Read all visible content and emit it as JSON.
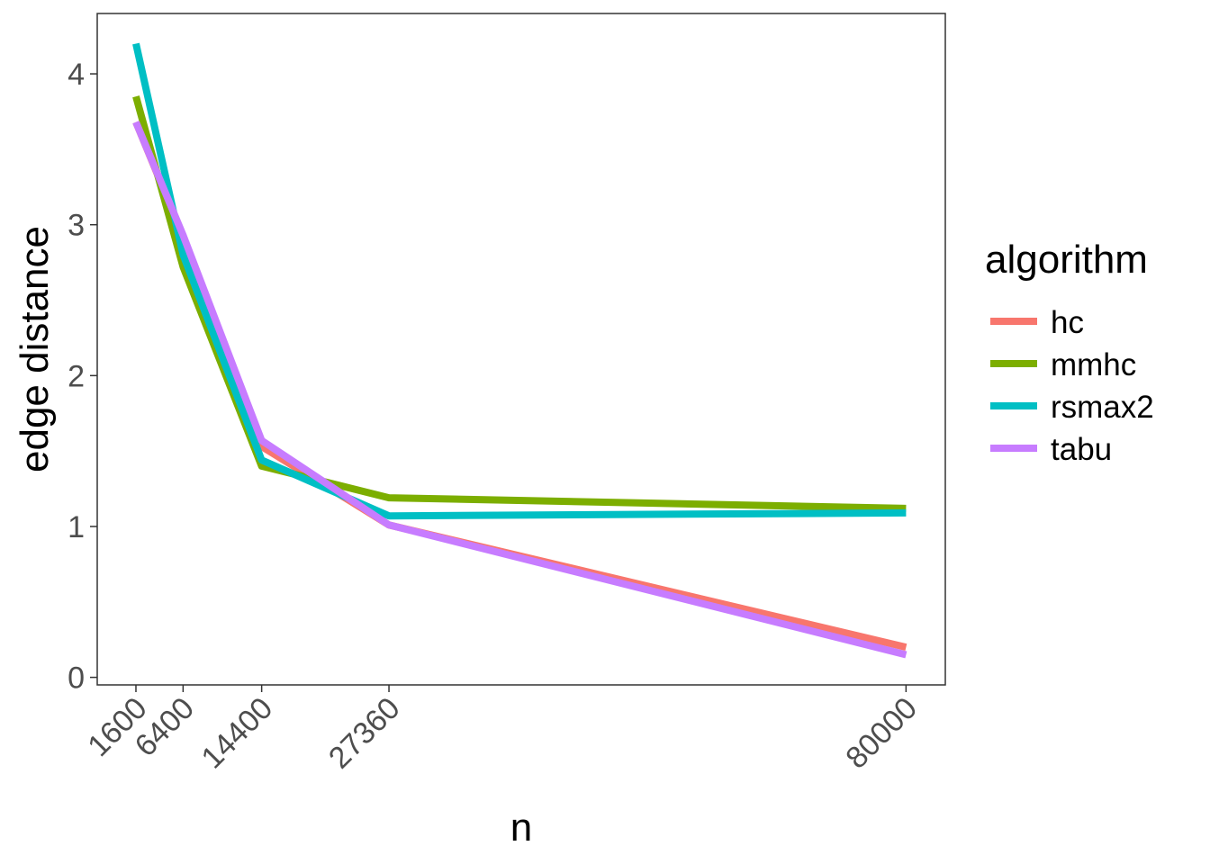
{
  "chart_data": {
    "type": "line",
    "xlabel": "n",
    "ylabel": "edge distance",
    "x": [
      1600,
      6400,
      14400,
      27360,
      80000
    ],
    "x_tick_labels": [
      "1600",
      "6400",
      "14400",
      "27360",
      "80000"
    ],
    "xlim": [
      -2340,
      84000
    ],
    "ylim": [
      -0.05,
      4.4
    ],
    "y_ticks": [
      0,
      1,
      2,
      3,
      4
    ],
    "y_tick_labels": [
      "0",
      "1",
      "2",
      "3",
      "4"
    ],
    "grid": false,
    "legend": {
      "title": "algorithm",
      "placement": "right"
    },
    "series": [
      {
        "name": "hc",
        "color": "#F8766D",
        "values": [
          3.68,
          2.92,
          1.53,
          1.01,
          0.2
        ]
      },
      {
        "name": "mmhc",
        "color": "#7CAE00",
        "values": [
          3.85,
          2.72,
          1.4,
          1.19,
          1.12
        ]
      },
      {
        "name": "rsmax2",
        "color": "#00BFC4",
        "values": [
          4.2,
          2.8,
          1.44,
          1.07,
          1.09
        ]
      },
      {
        "name": "tabu",
        "color": "#C77CFF",
        "values": [
          3.68,
          2.93,
          1.57,
          1.01,
          0.15
        ]
      }
    ]
  }
}
